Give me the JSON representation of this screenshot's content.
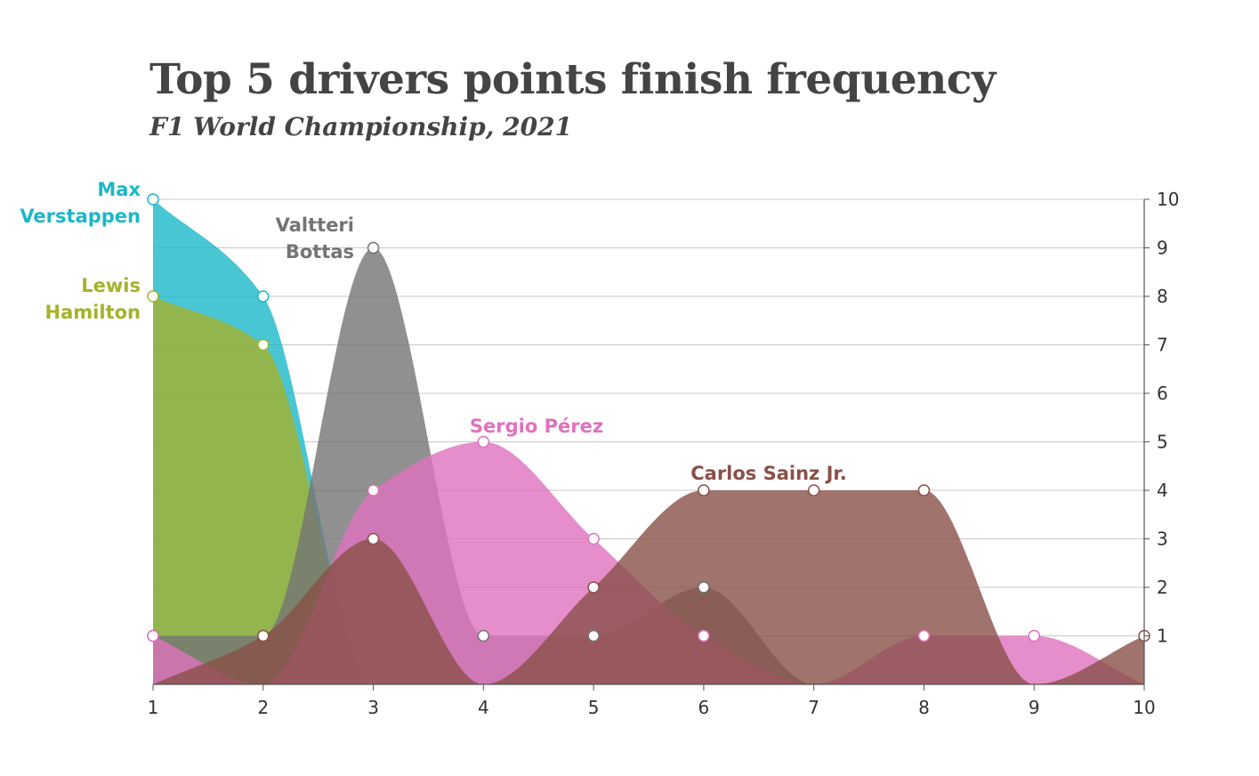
{
  "title": "Top 5 drivers points finish frequency",
  "subtitle": "F1 World Championship, 2021",
  "chart_data": {
    "type": "area",
    "x": [
      1,
      2,
      3,
      4,
      5,
      6,
      7,
      8,
      9,
      10
    ],
    "xlim": [
      1,
      10
    ],
    "ylim": [
      0,
      10
    ],
    "y_ticks": [
      1,
      2,
      3,
      4,
      5,
      6,
      7,
      8,
      9,
      10
    ],
    "y_axis_position": "right",
    "grid": true,
    "legend": "inline labels",
    "series": [
      {
        "name": "Max Verstappen",
        "label_lines": [
          "Max",
          "Verstappen"
        ],
        "color": "#1AB8C9",
        "values": [
          10,
          8,
          0,
          0,
          0,
          0,
          0,
          0,
          0,
          0
        ]
      },
      {
        "name": "Lewis Hamilton",
        "label_lines": [
          "Lewis",
          "Hamilton"
        ],
        "color": "#A5B22B",
        "values": [
          8,
          7,
          0,
          0,
          0,
          0,
          0,
          0,
          0,
          0
        ]
      },
      {
        "name": "Valtteri Bottas",
        "label_lines": [
          "Valtteri",
          "Bottas"
        ],
        "color": "#747474",
        "values": [
          1,
          1,
          9,
          1,
          1,
          2,
          0,
          0,
          0,
          0
        ]
      },
      {
        "name": "Sergio Pérez",
        "label_lines": [
          "Sergio Pérez"
        ],
        "color": "#E072BE",
        "values": [
          1,
          0,
          4,
          5,
          3,
          1,
          0,
          1,
          1,
          0
        ]
      },
      {
        "name": "Carlos Sainz Jr.",
        "label_lines": [
          "Carlos Sainz Jr."
        ],
        "color": "#8A5048",
        "values": [
          0,
          1,
          3,
          0,
          2,
          4,
          4,
          4,
          0,
          1
        ]
      }
    ]
  }
}
